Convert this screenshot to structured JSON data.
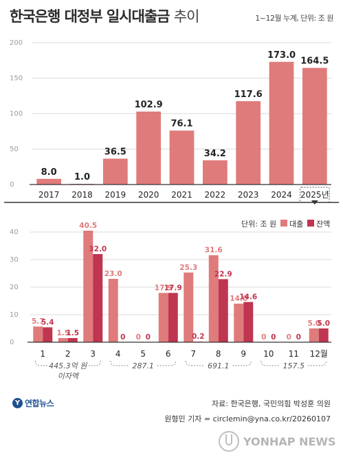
{
  "header": {
    "title": "한국은행 대정부 일시대출금",
    "title_suffix": "추이",
    "unit_note": "1~12월 누계, 단위: 조 원"
  },
  "footer": {
    "logo_mark": "Y",
    "logo_text": "연합뉴스",
    "source": "자료: 한국은행, 국민의힘 박성훈 의원",
    "author": "원형민 기자 = circlemin@yna.co.kr/20260107",
    "watermark": "YONHAP NEWS"
  },
  "colors": {
    "loan": "#e07b7b",
    "balance": "#c0354f",
    "top_bar": "#e07b7b",
    "axis": "#333333",
    "grid": "#d9d9d9"
  },
  "chart_data": [
    {
      "type": "bar",
      "categories": [
        "2017",
        "2018",
        "2019",
        "2020",
        "2021",
        "2022",
        "2023",
        "2024",
        "2025년"
      ],
      "values": [
        8.0,
        1.0,
        36.5,
        102.9,
        76.1,
        34.2,
        117.6,
        173.0,
        164.5
      ],
      "value_labels": [
        "8.0",
        "1.0",
        "36.5",
        "102.9",
        "76.1",
        "34.2",
        "117.6",
        "173.0",
        "164.5"
      ],
      "ylim": [
        0,
        200
      ],
      "yticks": [
        "0",
        "50",
        "100",
        "150",
        "200"
      ],
      "grid": true
    },
    {
      "type": "bar",
      "categories": [
        "1",
        "2",
        "3",
        "4",
        "5",
        "6",
        "7",
        "8",
        "9",
        "10",
        "11",
        "12월"
      ],
      "series": [
        {
          "name": "대출",
          "values": [
            5.7,
            1.5,
            40.5,
            23.0,
            0,
            17.9,
            25.3,
            31.6,
            14.0,
            0,
            0,
            5.0
          ],
          "labels": [
            "5.7",
            "1.5",
            "40.5",
            "23.0",
            "0",
            "17.9",
            "25.3",
            "31.6",
            "14.0",
            "0",
            "0",
            "5.0"
          ]
        },
        {
          "name": "잔액",
          "values": [
            5.4,
            1.5,
            32.0,
            0,
            0,
            17.9,
            0.2,
            22.9,
            14.6,
            0,
            0,
            5.0
          ],
          "labels": [
            "5.4",
            "1.5",
            "32.0",
            "0",
            "0",
            "17.9",
            "0.2",
            "22.9",
            "14.6",
            "0",
            "0",
            "5.0"
          ]
        }
      ],
      "ylim": [
        0,
        40
      ],
      "yticks": [
        "0",
        "10",
        "20",
        "30",
        "40"
      ],
      "unit_label": "단위: 조 원",
      "legend_position": "top-right",
      "grid": true,
      "annotations": [
        {
          "label": "445.3억 원\n이자액",
          "from": 0,
          "to": 2
        },
        {
          "label": "287.1",
          "from": 3,
          "to": 5
        },
        {
          "label": "691.1",
          "from": 6,
          "to": 8
        },
        {
          "label": "157.5",
          "from": 9,
          "to": 11
        }
      ]
    }
  ]
}
